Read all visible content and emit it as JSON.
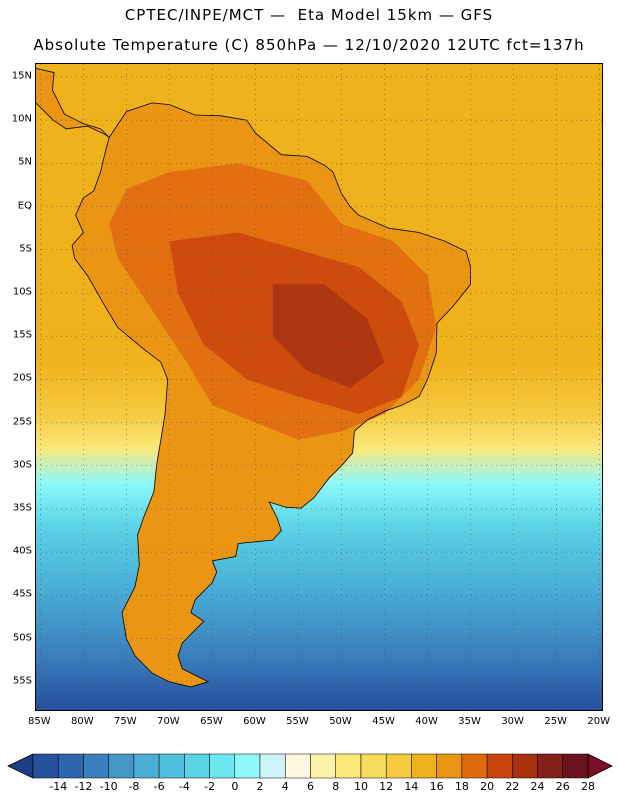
{
  "title_line1": "CPTEC/INPE/MCT —  Eta Model 15km — GFS",
  "title_line2": "Absolute Temperature (C) 850hPa — 12/10/2020 12UTC fct=137h",
  "lat_labels": [
    "15N",
    "10N",
    "5N",
    "EQ",
    "5S",
    "10S",
    "15S",
    "20S",
    "25S",
    "30S",
    "35S",
    "40S",
    "45S",
    "50S",
    "55S"
  ],
  "lon_labels": [
    "85W",
    "80W",
    "75W",
    "70W",
    "65W",
    "60W",
    "55W",
    "50W",
    "45W",
    "40W",
    "35W",
    "30W",
    "25W",
    "20W"
  ],
  "colorbar": {
    "labels": [
      "-14",
      "-12",
      "-10",
      "-8",
      "-6",
      "-4",
      "-2",
      "0",
      "2",
      "4",
      "6",
      "8",
      "10",
      "12",
      "14",
      "16",
      "18",
      "20",
      "22",
      "24",
      "26",
      "28"
    ],
    "colors": [
      "#1e3c87",
      "#27519c",
      "#2e66ad",
      "#3a7fbe",
      "#4697c8",
      "#4aaed6",
      "#4fc1dc",
      "#5ad4e6",
      "#6ae8ef",
      "#8ef8fb",
      "#cff3fb",
      "#fff7df",
      "#fdf3a8",
      "#fbe97a",
      "#f8dc5e",
      "#f5c940",
      "#f0b21c",
      "#eb9514",
      "#e06a0f",
      "#c9450d",
      "#a8310f",
      "#86201a",
      "#6b1420",
      "#7a0f26"
    ]
  },
  "map": {
    "extent": {
      "lon_min": -85.5,
      "lon_max": -19.5,
      "lat_min": -58.5,
      "lat_max": 16.5
    },
    "ocean_gradient": [
      {
        "lat": 16,
        "color": "#f0b21c"
      },
      {
        "lat": -18,
        "color": "#f0b21c"
      },
      {
        "lat": -24,
        "color": "#f5c940"
      },
      {
        "lat": -28,
        "color": "#fbe97a"
      },
      {
        "lat": -32,
        "color": "#8ef8fb"
      },
      {
        "lat": -37,
        "color": "#5ad4e6"
      },
      {
        "lat": -44,
        "color": "#4aaed6"
      },
      {
        "lat": -52,
        "color": "#3a7fbe"
      },
      {
        "lat": -58,
        "color": "#27519c"
      }
    ],
    "warm_region_color": "#e06a0f",
    "hot_region_color": "#c9450d",
    "core_region_color": "#a8310f",
    "land_color": "#eb9514"
  }
}
